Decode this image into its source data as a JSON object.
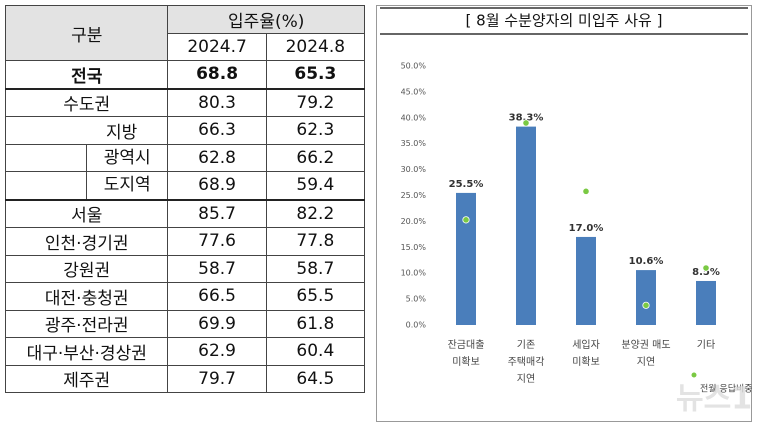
{
  "table": {
    "header": {
      "title": "구분",
      "group": "입주율(%)",
      "columns": [
        "2024.7",
        "2024.8"
      ]
    },
    "rows": [
      [
        "전국",
        68.8,
        65.3
      ],
      [
        "수도권",
        80.3,
        79.2
      ],
      [
        "지방",
        66.3,
        62.3
      ],
      [
        "광역시",
        62.8,
        66.2
      ],
      [
        "도지역",
        68.9,
        59.4
      ],
      [
        "서울",
        85.7,
        82.2
      ],
      [
        "인천·경기권",
        77.6,
        77.8
      ],
      [
        "강원권",
        58.7,
        58.7
      ],
      [
        "대전·충청권",
        66.5,
        65.5
      ],
      [
        "광주·전라권",
        69.9,
        61.8
      ],
      [
        "대구·부산·경상권",
        62.9,
        60.4
      ],
      [
        "제주권",
        79.7,
        64.5
      ]
    ]
  },
  "chart_data": {
    "type": "bar",
    "title": "[ 8월  수분양자의  미입주  사유 ]",
    "categories": [
      "잔금대출\n미확보",
      "기존\n주택매각\n지연",
      "세입자\n미확보",
      "분양권 매도\n지연",
      "기타"
    ],
    "series": [
      {
        "color": "#4a7ebb",
        "values": [
          25.5,
          38.3,
          17.0,
          10.6,
          8.5
        ],
        "value_labels": [
          "25.5%",
          "38.3%",
          "17.0%",
          "10.6%",
          "8.5%"
        ]
      },
      {
        "name": "전월 응답비중",
        "type": "scatter",
        "color": "#7ac943",
        "values": [
          20.3,
          39.0,
          25.8,
          3.8,
          11.0
        ]
      }
    ],
    "ylim": [
      0,
      50
    ],
    "yticks": [
      {
        "value": 0,
        "label": "0.0%"
      },
      {
        "value": 5,
        "label": "5.0%"
      },
      {
        "value": 10,
        "label": "10.0%"
      },
      {
        "value": 15,
        "label": "15.0%"
      },
      {
        "value": 20,
        "label": "20.0%"
      },
      {
        "value": 25,
        "label": "25.0%"
      },
      {
        "value": 30,
        "label": "30.0%"
      },
      {
        "value": 35,
        "label": "35.0%"
      },
      {
        "value": 40,
        "label": "40.0%"
      },
      {
        "value": 45,
        "label": "45.0%"
      },
      {
        "value": 50,
        "label": "50.0%"
      }
    ],
    "grid": false,
    "watermark": "뉴스1"
  }
}
